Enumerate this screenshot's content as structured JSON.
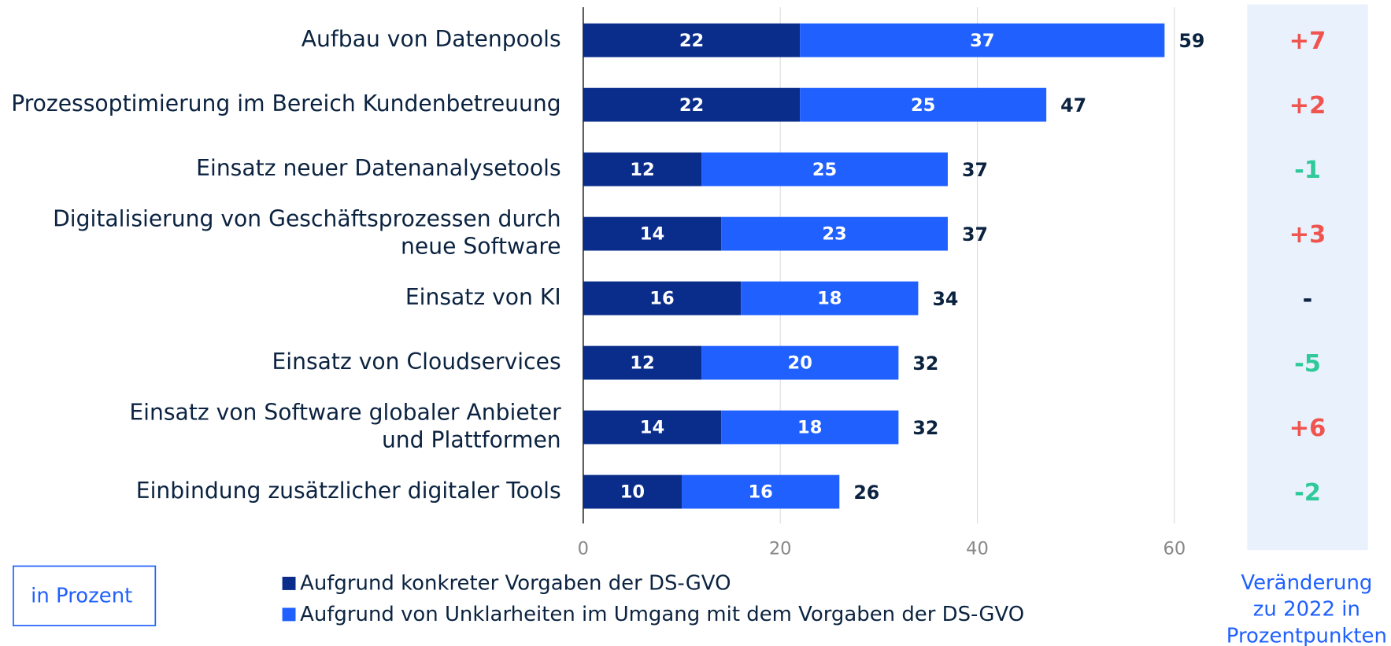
{
  "chart_data": {
    "type": "stacked_barh",
    "categories": [
      "Aufbau von Datenpools",
      "Prozessoptimierung im Bereich Kundenbetreuung",
      "Einsatz neuer Datenanalysetools",
      "Digitalisierung von Geschäftsprozessen durch\nneue Software",
      "Einsatz von KI",
      "Einsatz von Cloudservices",
      "Einsatz von Software globaler Anbieter\nund Plattformen",
      "Einbindung zusätzlicher digitaler Tools"
    ],
    "series": [
      {
        "name": "Aufgrund konkreter Vorgaben der DS-GVO",
        "color": "#0a2d8c",
        "values": [
          22,
          22,
          12,
          14,
          16,
          12,
          14,
          10
        ]
      },
      {
        "name": "Aufgrund von Unklarheiten im Umgang mit dem Vorgaben der DS-GVO",
        "color": "#1f60ff",
        "values": [
          37,
          25,
          25,
          23,
          18,
          20,
          18,
          16
        ]
      }
    ],
    "totals": [
      59,
      47,
      37,
      37,
      34,
      32,
      32,
      26
    ],
    "xlim": [
      0,
      60
    ],
    "xticks": [
      0,
      20,
      40,
      60
    ],
    "grid": true,
    "unit_note": "in Prozent",
    "changes": {
      "title": "Veränderung\nzu 2022 in\nProzentpunkten",
      "values": [
        7,
        2,
        -1,
        3,
        null,
        -5,
        6,
        -2
      ],
      "value_labels": [
        "+7",
        "+2",
        "-1",
        "+3",
        "-",
        "-5",
        "+6",
        "-2"
      ],
      "colors": {
        "up": "#f0544f",
        "down": "#2fc99a",
        "none": "#0b2340"
      }
    }
  }
}
